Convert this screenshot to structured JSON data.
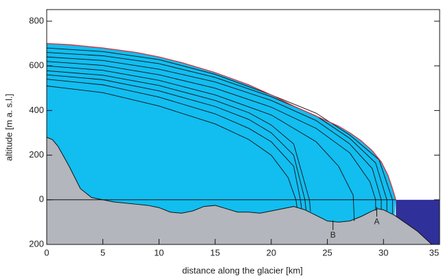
{
  "chart_data": {
    "type": "area",
    "xlabel": "distance along the glacier [km]",
    "ylabel": "altitude [m a. s.l.]",
    "xlim": [
      0,
      35
    ],
    "ylim": [
      -200,
      852
    ],
    "xticks": [
      0,
      5,
      10,
      15,
      20,
      25,
      30,
      35
    ],
    "yticks": [
      {
        "value": -200,
        "label": "200"
      },
      0,
      200,
      400,
      600,
      800
    ],
    "sea_level": 0,
    "ocean_start": 31.1,
    "colors": {
      "ice": "#12bdf0",
      "ground": "#b3b6bc",
      "ocean": "#30309a",
      "surface": "#e0303a",
      "layer": "#111111"
    },
    "surface": {
      "x": [
        0,
        2,
        5,
        8,
        10,
        12,
        15,
        18,
        20,
        22,
        24,
        26,
        27,
        28,
        29,
        29.8,
        30.4,
        30.8,
        31.1
      ],
      "y": [
        700,
        695,
        680,
        660,
        640,
        615,
        570,
        515,
        470,
        420,
        375,
        330,
        300,
        265,
        220,
        170,
        110,
        50,
        0
      ]
    },
    "bed": {
      "x": [
        0,
        0.5,
        1,
        2,
        3,
        4,
        5,
        6,
        8,
        9,
        10,
        11,
        12,
        13,
        14,
        15,
        16,
        17,
        18,
        19,
        20,
        21,
        22,
        23,
        24,
        25,
        26,
        27,
        28,
        29,
        29.5,
        30,
        31,
        33,
        34.3
      ],
      "y": [
        280,
        270,
        240,
        150,
        50,
        10,
        0,
        -10,
        -20,
        -25,
        -35,
        -55,
        -60,
        -50,
        -30,
        -25,
        -40,
        -55,
        -55,
        -60,
        -50,
        -40,
        -30,
        -45,
        -70,
        -95,
        -100,
        -95,
        -75,
        -50,
        -40,
        -45,
        -70,
        -140,
        -200
      ]
    },
    "layers": [
      {
        "x": [
          0,
          5,
          10,
          15,
          18,
          20,
          21.5,
          22.2,
          22.3
        ],
        "y": [
          510,
          480,
          420,
          340,
          270,
          200,
          100,
          0,
          -35
        ]
      },
      {
        "x": [
          0,
          5,
          10,
          15,
          18,
          20,
          22,
          22.6,
          22.7
        ],
        "y": [
          540,
          515,
          460,
          385,
          320,
          260,
          150,
          0,
          -38
        ]
      },
      {
        "x": [
          0,
          5,
          10,
          15,
          18,
          20,
          22,
          23,
          23.1
        ],
        "y": [
          560,
          538,
          488,
          418,
          360,
          300,
          200,
          0,
          -45
        ]
      },
      {
        "x": [
          0,
          5,
          10,
          15,
          18,
          20,
          22,
          23.4,
          23.5
        ],
        "y": [
          578,
          558,
          512,
          445,
          390,
          335,
          250,
          0,
          -52
        ]
      },
      {
        "x": [
          0,
          5,
          10,
          15,
          20,
          24,
          26,
          27.3,
          27.4
        ],
        "y": [
          600,
          580,
          535,
          470,
          380,
          260,
          150,
          20,
          -95
        ]
      },
      {
        "x": [
          0,
          5,
          10,
          15,
          20,
          24,
          27,
          28.8,
          29.3,
          29.3
        ],
        "y": [
          620,
          602,
          560,
          500,
          415,
          320,
          210,
          80,
          0,
          -48
        ]
      },
      {
        "x": [
          0,
          5,
          10,
          15,
          20,
          24,
          27,
          29,
          29.8,
          29.8
        ],
        "y": [
          640,
          624,
          585,
          528,
          445,
          355,
          250,
          140,
          0,
          -43
        ]
      },
      {
        "x": [
          0,
          5,
          10,
          15,
          20,
          24,
          27,
          29.3,
          30.3,
          30.3
        ],
        "y": [
          660,
          645,
          610,
          548,
          462,
          376,
          275,
          165,
          0,
          -50
        ]
      },
      {
        "x": [
          0,
          5,
          10,
          15,
          20,
          24,
          27,
          29.6,
          30.8,
          30.8
        ],
        "y": [
          680,
          664,
          628,
          562,
          470,
          388,
          290,
          180,
          0,
          -62
        ]
      }
    ],
    "annotations": [
      {
        "text": "A",
        "x": 29.4,
        "y": -100
      },
      {
        "text": "B",
        "x": 25.5,
        "y": -160
      }
    ]
  }
}
